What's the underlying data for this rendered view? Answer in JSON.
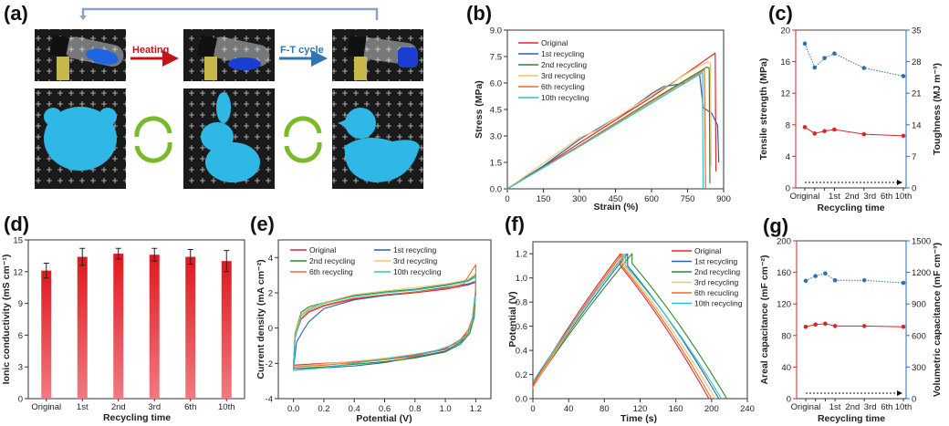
{
  "panel_a": {
    "label": "(a)",
    "heating_label": "Heating",
    "ft_cycle_label": "F-T cycle",
    "colors": {
      "heating": "#c0161b",
      "ft": "#2e75b6",
      "hydrogel": "#2fb8e6",
      "recycle": "#7ab929",
      "loop_arrow": "#8ea3bf"
    }
  },
  "series_colors": {
    "Original": "#e3262a",
    "1st recycling": "#2a62ad",
    "2nd recycling": "#2a8a2a",
    "3rd recycling": "#f2c46b",
    "6th recycling": "#f06a2a",
    "10th recycling": "#2cc4cc",
    "6th recucling": "#f06a2a"
  },
  "chart_data": [
    {
      "panel": "(b)",
      "type": "line",
      "xlabel": "Strain (%)",
      "ylabel": "Stress (MPa)",
      "xlim": [
        0,
        900
      ],
      "ylim": [
        0,
        9
      ],
      "xticks": [
        "0",
        "150",
        "300",
        "450",
        "600",
        "750",
        "900"
      ],
      "yticks": [
        "0.0",
        "1.5",
        "3.0",
        "4.5",
        "6.0",
        "7.5",
        "9.0"
      ],
      "series": [
        {
          "name": "Original",
          "points": [
            [
              0,
              0
            ],
            [
              150,
              1.25
            ],
            [
              300,
              2.6
            ],
            [
              450,
              3.9
            ],
            [
              600,
              5.2
            ],
            [
              750,
              6.6
            ],
            [
              865,
              7.7
            ],
            [
              868,
              1.0
            ]
          ]
        },
        {
          "name": "1st recycling",
          "points": [
            [
              0,
              0
            ],
            [
              150,
              1.3
            ],
            [
              300,
              2.8
            ],
            [
              400,
              3.6
            ],
            [
              500,
              4.4
            ],
            [
              600,
              5.4
            ],
            [
              650,
              5.8
            ],
            [
              700,
              5.9
            ],
            [
              740,
              6.0
            ],
            [
              800,
              6.5
            ],
            [
              815,
              4.6
            ],
            [
              850,
              4.3
            ],
            [
              875,
              3.6
            ],
            [
              880,
              1.5
            ]
          ]
        },
        {
          "name": "2nd recycling",
          "points": [
            [
              0,
              0
            ],
            [
              300,
              2.45
            ],
            [
              600,
              5.0
            ],
            [
              830,
              6.9
            ],
            [
              840,
              6.85
            ],
            [
              843,
              0.3
            ]
          ]
        },
        {
          "name": "3rd recycling",
          "points": [
            [
              0,
              0
            ],
            [
              300,
              2.9
            ],
            [
              370,
              3.3
            ],
            [
              600,
              5.3
            ],
            [
              790,
              6.9
            ],
            [
              835,
              7.2
            ],
            [
              845,
              7.1
            ],
            [
              848,
              1.3
            ]
          ]
        },
        {
          "name": "6th recycling",
          "points": [
            [
              0,
              0
            ],
            [
              300,
              2.45
            ],
            [
              600,
              4.95
            ],
            [
              820,
              6.75
            ],
            [
              825,
              0
            ]
          ]
        },
        {
          "name": "10th recycling",
          "points": [
            [
              0,
              0
            ],
            [
              300,
              2.4
            ],
            [
              600,
              4.85
            ],
            [
              812,
              6.6
            ],
            [
              815,
              0
            ]
          ]
        }
      ],
      "legend": "top-left"
    },
    {
      "panel": "(c)",
      "type": "line",
      "xlabel": "Recycling time",
      "ylabel_left": "Tensile strength (MPa)",
      "ylabel_right": "Toughness (MJ m⁻³)",
      "x": [
        0,
        1,
        2,
        3,
        6,
        10
      ],
      "xticklabels": [
        "Original",
        "1st",
        "2nd",
        "3rd",
        "6th",
        "10th"
      ],
      "ylim_left": [
        0,
        20
      ],
      "ylim_right": [
        0,
        35
      ],
      "yticks_left": [
        "0",
        "4",
        "8",
        "12",
        "16",
        "20"
      ],
      "yticks_right": [
        "0",
        "7",
        "14",
        "21",
        "28",
        "35"
      ],
      "series": [
        {
          "name": "Tensile strength",
          "axis": "left",
          "color": "#d9262b",
          "values": [
            7.7,
            6.9,
            7.2,
            7.4,
            6.8,
            6.6
          ]
        },
        {
          "name": "Toughness",
          "axis": "right",
          "color": "#2f6fb0",
          "values": [
            32.0,
            26.7,
            28.8,
            29.8,
            26.6,
            24.8
          ]
        }
      ]
    },
    {
      "panel": "(d)",
      "type": "bar",
      "xlabel": "Recycling time",
      "ylabel": "Ionic conductivity (mS cm⁻¹)",
      "categories": [
        "Original",
        "1st",
        "2nd",
        "3rd",
        "6th",
        "10th"
      ],
      "values": [
        12.1,
        13.4,
        13.7,
        13.6,
        13.4,
        13.0
      ],
      "errors": [
        0.7,
        0.8,
        0.5,
        0.6,
        0.7,
        1.0
      ],
      "ylim": [
        0,
        15
      ],
      "yticks": [
        "0",
        "3",
        "6",
        "9",
        "12",
        "15"
      ]
    },
    {
      "panel": "(e)",
      "type": "line",
      "xlabel": "Potential (V)",
      "ylabel": "Current density (mA cm⁻²)",
      "xlim": [
        -0.1,
        1.3
      ],
      "ylim": [
        -4,
        5
      ],
      "xticks": [
        "0.0",
        "0.2",
        "0.4",
        "0.6",
        "0.8",
        "1.0",
        "1.2"
      ],
      "yticks": [
        "-4",
        "-2",
        "0",
        "2",
        "4"
      ],
      "legend_labels": [
        "Original",
        "1st recycling",
        "2nd recycling",
        "3rd recycling",
        "6th  recycling",
        "10th recycling"
      ],
      "series": [
        {
          "name": "Original",
          "points": [
            [
              0,
              -2.1
            ],
            [
              0.01,
              -0.5
            ],
            [
              0.05,
              0.5
            ],
            [
              0.1,
              0.9
            ],
            [
              0.2,
              1.25
            ],
            [
              0.4,
              1.65
            ],
            [
              0.6,
              1.85
            ],
            [
              0.8,
              2.0
            ],
            [
              1.0,
              2.2
            ],
            [
              1.15,
              2.45
            ],
            [
              1.2,
              2.6
            ],
            [
              1.2,
              2.0
            ],
            [
              1.18,
              0.5
            ],
            [
              1.15,
              -0.2
            ],
            [
              1.1,
              -0.7
            ],
            [
              1.0,
              -1.2
            ],
            [
              0.8,
              -1.55
            ],
            [
              0.6,
              -1.75
            ],
            [
              0.4,
              -1.9
            ],
            [
              0.2,
              -2.0
            ],
            [
              0,
              -2.1
            ]
          ]
        },
        {
          "name": "1st recycling",
          "points": [
            [
              0,
              -2.3
            ],
            [
              0.02,
              -0.8
            ],
            [
              0.06,
              -0.2
            ],
            [
              0.1,
              0.35
            ],
            [
              0.2,
              1.1
            ],
            [
              0.4,
              1.6
            ],
            [
              0.6,
              1.85
            ],
            [
              0.8,
              2.05
            ],
            [
              1.0,
              2.3
            ],
            [
              1.15,
              2.5
            ],
            [
              1.2,
              2.65
            ],
            [
              1.2,
              2.0
            ],
            [
              1.18,
              0.4
            ],
            [
              1.15,
              -0.3
            ],
            [
              1.1,
              -0.8
            ],
            [
              1.0,
              -1.3
            ],
            [
              0.8,
              -1.65
            ],
            [
              0.6,
              -1.95
            ],
            [
              0.4,
              -2.15
            ],
            [
              0.2,
              -2.25
            ],
            [
              0,
              -2.3
            ]
          ]
        },
        {
          "name": "2nd recycling",
          "points": [
            [
              0,
              -2.3
            ],
            [
              0.01,
              -0.3
            ],
            [
              0.05,
              0.9
            ],
            [
              0.1,
              1.2
            ],
            [
              0.2,
              1.45
            ],
            [
              0.4,
              1.85
            ],
            [
              0.6,
              2.05
            ],
            [
              0.8,
              2.2
            ],
            [
              1.0,
              2.45
            ],
            [
              1.15,
              2.7
            ],
            [
              1.2,
              3.0
            ],
            [
              1.2,
              2.2
            ],
            [
              1.19,
              0.6
            ],
            [
              1.16,
              -0.3
            ],
            [
              1.1,
              -0.9
            ],
            [
              1.0,
              -1.35
            ],
            [
              0.8,
              -1.7
            ],
            [
              0.6,
              -1.9
            ],
            [
              0.4,
              -2.05
            ],
            [
              0.2,
              -2.2
            ],
            [
              0,
              -2.3
            ]
          ]
        },
        {
          "name": "3rd recycling",
          "points": [
            [
              0,
              -2.2
            ],
            [
              0.01,
              -0.4
            ],
            [
              0.05,
              0.8
            ],
            [
              0.1,
              1.1
            ],
            [
              0.2,
              1.45
            ],
            [
              0.4,
              1.9
            ],
            [
              0.6,
              2.1
            ],
            [
              0.8,
              2.3
            ],
            [
              1.0,
              2.5
            ],
            [
              1.15,
              2.75
            ],
            [
              1.2,
              3.1
            ],
            [
              1.2,
              2.1
            ],
            [
              1.17,
              0.2
            ],
            [
              1.13,
              -0.5
            ],
            [
              1.05,
              -1.0
            ],
            [
              0.9,
              -1.35
            ],
            [
              0.7,
              -1.6
            ],
            [
              0.5,
              -1.8
            ],
            [
              0.3,
              -1.95
            ],
            [
              0.1,
              -2.1
            ],
            [
              0,
              -2.2
            ]
          ]
        },
        {
          "name": "6th recycling",
          "points": [
            [
              0,
              -2.2
            ],
            [
              0.01,
              -0.5
            ],
            [
              0.05,
              0.55
            ],
            [
              0.1,
              0.95
            ],
            [
              0.2,
              1.3
            ],
            [
              0.4,
              1.7
            ],
            [
              0.6,
              1.9
            ],
            [
              0.8,
              2.05
            ],
            [
              1.0,
              2.25
            ],
            [
              1.12,
              2.5
            ],
            [
              1.2,
              3.6
            ],
            [
              1.2,
              2.3
            ],
            [
              1.18,
              0.6
            ],
            [
              1.15,
              -0.1
            ],
            [
              1.1,
              -0.65
            ],
            [
              1.0,
              -1.15
            ],
            [
              0.8,
              -1.6
            ],
            [
              0.6,
              -1.8
            ],
            [
              0.4,
              -1.95
            ],
            [
              0.2,
              -2.1
            ],
            [
              0,
              -2.2
            ]
          ]
        },
        {
          "name": "10th recycling",
          "points": [
            [
              0,
              -2.4
            ],
            [
              0.01,
              -0.6
            ],
            [
              0.05,
              0.7
            ],
            [
              0.1,
              1.05
            ],
            [
              0.2,
              1.4
            ],
            [
              0.4,
              1.8
            ],
            [
              0.6,
              2.0
            ],
            [
              0.8,
              2.15
            ],
            [
              1.0,
              2.4
            ],
            [
              1.15,
              2.65
            ],
            [
              1.2,
              2.9
            ],
            [
              1.2,
              2.0
            ],
            [
              1.18,
              0.4
            ],
            [
              1.15,
              -0.3
            ],
            [
              1.08,
              -0.85
            ],
            [
              0.95,
              -1.25
            ],
            [
              0.8,
              -1.5
            ],
            [
              0.6,
              -1.75
            ],
            [
              0.4,
              -2.0
            ],
            [
              0.2,
              -2.25
            ],
            [
              0,
              -2.4
            ]
          ]
        }
      ],
      "legend": "top"
    },
    {
      "panel": "(f)",
      "type": "line",
      "xlabel": "Time (s)",
      "ylabel": "Potential (V)",
      "xlim": [
        0,
        240
      ],
      "ylim": [
        0,
        1.3
      ],
      "xticks": [
        "0",
        "40",
        "80",
        "120",
        "160",
        "200",
        "240"
      ],
      "yticks": [
        "0.0",
        "0.2",
        "0.4",
        "0.6",
        "0.8",
        "1.0",
        "1.2"
      ],
      "legend_labels": [
        "Original",
        "1st recycling",
        "2nd recycling",
        "3rd recycling",
        "6th recucling",
        "10th recycling"
      ],
      "series": [
        {
          "name": "Original",
          "start_V": 0.12,
          "charge_end_s": 98,
          "ir_drop_V": 0.1,
          "discharge_end_s": 197
        },
        {
          "name": "1st recycling",
          "start_V": 0.1,
          "charge_end_s": 106,
          "ir_drop_V": 0.1,
          "discharge_end_s": 208
        },
        {
          "name": "2nd recycling",
          "start_V": 0.1,
          "charge_end_s": 111,
          "ir_drop_V": 0.08,
          "discharge_end_s": 217
        },
        {
          "name": "3rd recycling",
          "start_V": 0.09,
          "charge_end_s": 102,
          "ir_drop_V": 0.1,
          "discharge_end_s": 204
        },
        {
          "name": "6th recucling",
          "start_V": 0.1,
          "charge_end_s": 100,
          "ir_drop_V": 0.1,
          "discharge_end_s": 200
        },
        {
          "name": "10th recycling",
          "start_V": 0.14,
          "charge_end_s": 104,
          "ir_drop_V": 0.1,
          "discharge_end_s": 211
        }
      ],
      "legend": "top-right"
    },
    {
      "panel": "(g)",
      "type": "line",
      "xlabel": "Recycling time",
      "ylabel_left": "Areal capacitance (mF cm⁻²)",
      "ylabel_right": "Volumetric capacitance (mF cm⁻³)",
      "x": [
        0,
        1,
        2,
        3,
        6,
        10
      ],
      "xticklabels": [
        "Original",
        "1st",
        "2nd",
        "3rd",
        "6th",
        "10th"
      ],
      "ylim_left": [
        0,
        200
      ],
      "ylim_right": [
        0,
        1500
      ],
      "yticks_left": [
        "0",
        "40",
        "80",
        "120",
        "160",
        "200"
      ],
      "yticks_right": [
        "0",
        "300",
        "600",
        "900",
        "1200",
        "1500"
      ],
      "series": [
        {
          "name": "Areal capacitance",
          "axis": "left",
          "color": "#d9262b",
          "values": [
            91,
            94,
            95,
            92,
            92,
            91
          ]
        },
        {
          "name": "Volumetric capacitance",
          "axis": "right",
          "color": "#2f6fb0",
          "values": [
            1120,
            1165,
            1190,
            1125,
            1125,
            1100
          ]
        }
      ]
    }
  ]
}
